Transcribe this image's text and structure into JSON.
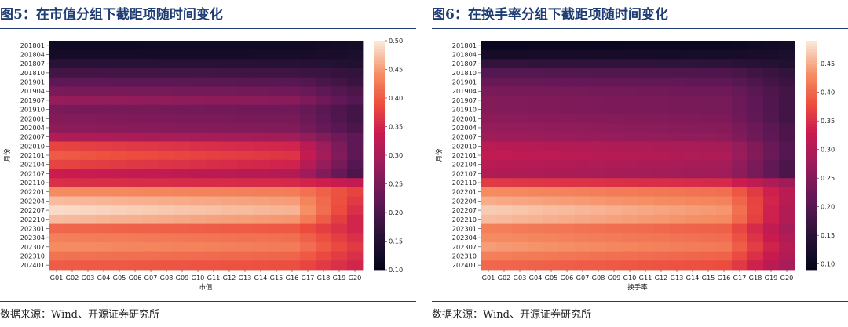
{
  "panels": [
    {
      "title": "图5：在市值分组下截距项随时间变化",
      "source": "数据来源：Wind、开源证券研究所",
      "chart_data": {
        "type": "heatmap",
        "xlabel": "市值",
        "ylabel": "月份",
        "x_categories": [
          "G01",
          "G02",
          "G03",
          "G04",
          "G05",
          "G06",
          "G07",
          "G08",
          "G09",
          "G10",
          "G11",
          "G12",
          "G13",
          "G14",
          "G15",
          "G16",
          "G17",
          "G18",
          "G19",
          "G20"
        ],
        "y_tick_labels": [
          "201801",
          "201804",
          "201807",
          "201810",
          "201901",
          "201904",
          "201907",
          "201910",
          "202001",
          "202004",
          "202007",
          "202010",
          "202101",
          "202104",
          "202107",
          "202110",
          "202201",
          "202204",
          "202207",
          "202210",
          "202301",
          "202304",
          "202307",
          "202310",
          "202401"
        ],
        "months": 25,
        "colorbar_range": [
          0.1,
          0.5
        ],
        "colorbar_ticks": [
          "0.10",
          "0.15",
          "0.20",
          "0.25",
          "0.30",
          "0.35",
          "0.40",
          "0.45",
          "0.50"
        ],
        "colormap": "rocket",
        "row_profiles": [
          {
            "start": 0.12,
            "end": 0.13
          },
          {
            "start": 0.13,
            "end": 0.14
          },
          {
            "start": 0.16,
            "end": 0.15
          },
          {
            "start": 0.19,
            "end": 0.17
          },
          {
            "start": 0.22,
            "end": 0.18
          },
          {
            "start": 0.25,
            "end": 0.2
          },
          {
            "start": 0.28,
            "end": 0.21
          },
          {
            "start": 0.25,
            "end": 0.19
          },
          {
            "start": 0.26,
            "end": 0.19
          },
          {
            "start": 0.27,
            "end": 0.2
          },
          {
            "start": 0.31,
            "end": 0.22
          },
          {
            "start": 0.38,
            "end": 0.22
          },
          {
            "start": 0.4,
            "end": 0.22
          },
          {
            "start": 0.38,
            "end": 0.21
          },
          {
            "start": 0.34,
            "end": 0.2
          },
          {
            "start": 0.36,
            "end": 0.33
          },
          {
            "start": 0.44,
            "end": 0.38
          },
          {
            "start": 0.47,
            "end": 0.37
          },
          {
            "start": 0.49,
            "end": 0.36
          },
          {
            "start": 0.47,
            "end": 0.35
          },
          {
            "start": 0.41,
            "end": 0.35
          },
          {
            "start": 0.43,
            "end": 0.36
          },
          {
            "start": 0.44,
            "end": 0.37
          },
          {
            "start": 0.42,
            "end": 0.36
          },
          {
            "start": 0.4,
            "end": 0.35
          }
        ]
      }
    },
    {
      "title": "图6：在换手率分组下截距项随时间变化",
      "source": "数据来源：Wind、开源证券研究所",
      "chart_data": {
        "type": "heatmap",
        "xlabel": "换手率",
        "ylabel": "月份",
        "x_categories": [
          "G01",
          "G02",
          "G03",
          "G04",
          "G05",
          "G06",
          "G07",
          "G08",
          "G09",
          "G10",
          "G11",
          "G12",
          "G13",
          "G14",
          "G15",
          "G16",
          "G17",
          "G18",
          "G19",
          "G20"
        ],
        "y_tick_labels": [
          "201801",
          "201804",
          "201807",
          "201810",
          "201901",
          "201904",
          "201907",
          "201910",
          "202001",
          "202004",
          "202007",
          "202010",
          "202101",
          "202104",
          "202107",
          "202110",
          "202201",
          "202204",
          "202207",
          "202210",
          "202301",
          "202304",
          "202307",
          "202310",
          "202401"
        ],
        "months": 25,
        "colorbar_range": [
          0.09,
          0.49
        ],
        "colorbar_ticks": [
          "0.10",
          "0.15",
          "0.20",
          "0.25",
          "0.30",
          "0.35",
          "0.40",
          "0.45"
        ],
        "colormap": "rocket",
        "row_profiles": [
          {
            "start": 0.1,
            "end": 0.12
          },
          {
            "start": 0.12,
            "end": 0.13
          },
          {
            "start": 0.16,
            "end": 0.14
          },
          {
            "start": 0.2,
            "end": 0.16
          },
          {
            "start": 0.22,
            "end": 0.17
          },
          {
            "start": 0.24,
            "end": 0.18
          },
          {
            "start": 0.25,
            "end": 0.18
          },
          {
            "start": 0.25,
            "end": 0.18
          },
          {
            "start": 0.26,
            "end": 0.18
          },
          {
            "start": 0.27,
            "end": 0.19
          },
          {
            "start": 0.28,
            "end": 0.19
          },
          {
            "start": 0.31,
            "end": 0.2
          },
          {
            "start": 0.32,
            "end": 0.2
          },
          {
            "start": 0.31,
            "end": 0.19
          },
          {
            "start": 0.3,
            "end": 0.19
          },
          {
            "start": 0.36,
            "end": 0.28
          },
          {
            "start": 0.43,
            "end": 0.31
          },
          {
            "start": 0.45,
            "end": 0.31
          },
          {
            "start": 0.47,
            "end": 0.3
          },
          {
            "start": 0.46,
            "end": 0.3
          },
          {
            "start": 0.42,
            "end": 0.29
          },
          {
            "start": 0.43,
            "end": 0.3
          },
          {
            "start": 0.44,
            "end": 0.31
          },
          {
            "start": 0.42,
            "end": 0.3
          },
          {
            "start": 0.4,
            "end": 0.29
          }
        ]
      }
    }
  ]
}
